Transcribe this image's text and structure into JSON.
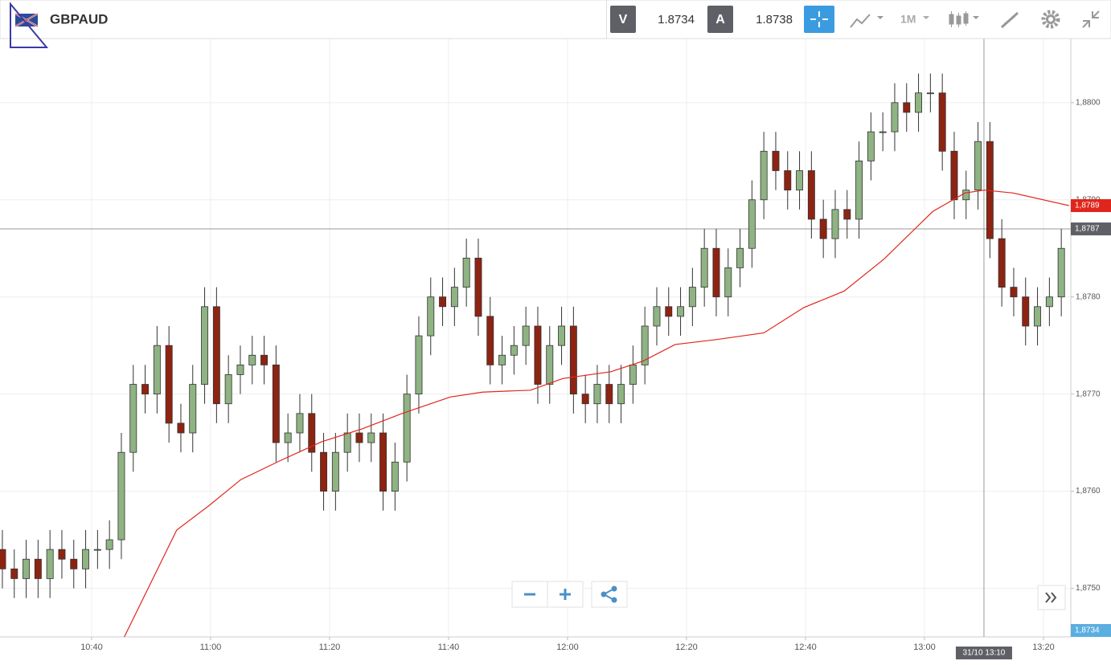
{
  "header": {
    "symbol": "GBPAUD",
    "bid_tag": "V",
    "bid": "1.8734",
    "ask_tag": "A",
    "ask": "1.8738",
    "timeframe": "1M"
  },
  "chart_data": {
    "type": "candlestick",
    "up_color": "#8fb383",
    "down_color": "#8e2312",
    "x": [
      625,
      627,
      629,
      631,
      633,
      635,
      637,
      639,
      641,
      643,
      645,
      647,
      649,
      651,
      653,
      655,
      657,
      659,
      661,
      663,
      665,
      667,
      669,
      671,
      673,
      675,
      677,
      679,
      681,
      683,
      685,
      687,
      689,
      691,
      693,
      695,
      697,
      699,
      701,
      703,
      705,
      707,
      709,
      711,
      713,
      715,
      717,
      719,
      721,
      723,
      725,
      727,
      729,
      731,
      733,
      735,
      737,
      739,
      741,
      743,
      745,
      747,
      749,
      751,
      753,
      755,
      757,
      759,
      761,
      763,
      765,
      767,
      769,
      771,
      773,
      775,
      777,
      779,
      781,
      783,
      785,
      787,
      789,
      791,
      793,
      795,
      797,
      799,
      801,
      803
    ],
    "open": [
      1.8754,
      1.8752,
      1.8751,
      1.8753,
      1.8751,
      1.8754,
      1.8753,
      1.8752,
      1.8754,
      1.8754,
      1.8755,
      1.8764,
      1.8771,
      1.877,
      1.8775,
      1.8767,
      1.8766,
      1.8771,
      1.8779,
      1.8769,
      1.8772,
      1.8773,
      1.8774,
      1.8773,
      1.8765,
      1.8766,
      1.8768,
      1.8764,
      1.876,
      1.8764,
      1.8766,
      1.8765,
      1.8766,
      1.876,
      1.8763,
      1.877,
      1.8776,
      1.878,
      1.8779,
      1.8781,
      1.8784,
      1.8778,
      1.8773,
      1.8774,
      1.8775,
      1.8777,
      1.8771,
      1.8775,
      1.8777,
      1.877,
      1.8769,
      1.8771,
      1.8769,
      1.8771,
      1.8773,
      1.8777,
      1.8779,
      1.8778,
      1.8779,
      1.8781,
      1.8785,
      1.878,
      1.8783,
      1.8785,
      1.879,
      1.8795,
      1.8793,
      1.8791,
      1.8793,
      1.8788,
      1.8786,
      1.8789,
      1.8788,
      1.8794,
      1.8797,
      1.8797,
      1.88,
      1.8799,
      1.8801,
      1.8801,
      1.8795,
      1.879,
      1.8791,
      1.8796,
      1.8786,
      1.8781,
      1.878,
      1.8777,
      1.8779,
      1.878
    ],
    "high": [
      1.8756,
      1.8754,
      1.8755,
      1.8755,
      1.8756,
      1.8756,
      1.8755,
      1.8756,
      1.8756,
      1.8757,
      1.8766,
      1.8773,
      1.8773,
      1.8777,
      1.8777,
      1.8769,
      1.8773,
      1.8781,
      1.8781,
      1.8774,
      1.8775,
      1.8776,
      1.8776,
      1.8775,
      1.8768,
      1.877,
      1.877,
      1.8766,
      1.8766,
      1.8768,
      1.8768,
      1.8768,
      1.8768,
      1.8765,
      1.8772,
      1.8778,
      1.8782,
      1.8782,
      1.8783,
      1.8786,
      1.8786,
      1.878,
      1.8776,
      1.8777,
      1.8779,
      1.8779,
      1.8777,
      1.8779,
      1.8779,
      1.8772,
      1.8773,
      1.8773,
      1.8773,
      1.8775,
      1.8779,
      1.8781,
      1.8781,
      1.8781,
      1.8783,
      1.8787,
      1.8787,
      1.8785,
      1.8787,
      1.8792,
      1.8797,
      1.8797,
      1.8795,
      1.8795,
      1.8795,
      1.879,
      1.8791,
      1.8791,
      1.8796,
      1.8799,
      1.8799,
      1.8802,
      1.8802,
      1.8803,
      1.8803,
      1.8803,
      1.8797,
      1.8793,
      1.8798,
      1.8798,
      1.8788,
      1.8783,
      1.8782,
      1.8781,
      1.8782,
      1.8787
    ],
    "low": [
      1.875,
      1.8749,
      1.8749,
      1.8749,
      1.8749,
      1.8751,
      1.875,
      1.875,
      1.8752,
      1.8752,
      1.8753,
      1.8762,
      1.8768,
      1.8768,
      1.8765,
      1.8764,
      1.8764,
      1.8769,
      1.8767,
      1.8767,
      1.877,
      1.8771,
      1.8771,
      1.8763,
      1.8763,
      1.8764,
      1.8762,
      1.8758,
      1.8758,
      1.8762,
      1.8763,
      1.8763,
      1.8758,
      1.8758,
      1.8761,
      1.8768,
      1.8774,
      1.8777,
      1.8777,
      1.8779,
      1.8776,
      1.8771,
      1.8771,
      1.8772,
      1.8773,
      1.8769,
      1.8769,
      1.8773,
      1.8768,
      1.8767,
      1.8767,
      1.8767,
      1.8767,
      1.8769,
      1.8771,
      1.8775,
      1.8776,
      1.8776,
      1.8777,
      1.8779,
      1.8778,
      1.8778,
      1.8781,
      1.8783,
      1.8788,
      1.8791,
      1.8789,
      1.8789,
      1.8786,
      1.8784,
      1.8784,
      1.8786,
      1.8786,
      1.8792,
      1.8795,
      1.8795,
      1.8797,
      1.8797,
      1.8799,
      1.8793,
      1.8788,
      1.8788,
      1.8789,
      1.8784,
      1.8779,
      1.8778,
      1.8775,
      1.8775,
      1.8777,
      1.8778
    ],
    "close": [
      1.8752,
      1.8751,
      1.8753,
      1.8751,
      1.8754,
      1.8753,
      1.8752,
      1.8754,
      1.8754,
      1.8755,
      1.8764,
      1.8771,
      1.877,
      1.8775,
      1.8767,
      1.8766,
      1.8771,
      1.8779,
      1.8769,
      1.8772,
      1.8773,
      1.8774,
      1.8773,
      1.8765,
      1.8766,
      1.8768,
      1.8764,
      1.876,
      1.8764,
      1.8766,
      1.8765,
      1.8766,
      1.876,
      1.8763,
      1.877,
      1.8776,
      1.878,
      1.8779,
      1.8781,
      1.8784,
      1.8778,
      1.8773,
      1.8774,
      1.8775,
      1.8777,
      1.8771,
      1.8775,
      1.8777,
      1.877,
      1.8769,
      1.8771,
      1.8769,
      1.8771,
      1.8773,
      1.8777,
      1.8779,
      1.8778,
      1.8779,
      1.8781,
      1.8785,
      1.878,
      1.8783,
      1.8785,
      1.879,
      1.8795,
      1.8793,
      1.8791,
      1.8793,
      1.8788,
      1.8786,
      1.8789,
      1.8788,
      1.8794,
      1.8797,
      1.8797,
      1.88,
      1.8799,
      1.8801,
      1.8801,
      1.8795,
      1.879,
      1.8791,
      1.8796,
      1.8786,
      1.8781,
      1.878,
      1.8777,
      1.8779,
      1.878,
      1.8785
    ],
    "moving_average": {
      "color": "#e0261c",
      "x": [
        645.5,
        654.3,
        659.7,
        665.1,
        671.9,
        678.7,
        685.4,
        692.2,
        700.3,
        705.7,
        713.8,
        719.2,
        727.3,
        732.7,
        738.1,
        744.9,
        753.0,
        759.7,
        766.5,
        773.2,
        781.4,
        786.8,
        790.1,
        794.9,
        804.3
      ],
      "values": [
        1.8745,
        1.8756,
        1.87585,
        1.87612,
        1.87632,
        1.87651,
        1.87664,
        1.8768,
        1.87697,
        1.87702,
        1.87704,
        1.87716,
        1.87723,
        1.87734,
        1.87751,
        1.87756,
        1.87763,
        1.87789,
        1.87806,
        1.87839,
        1.87888,
        1.87907,
        1.8791,
        1.87907,
        1.87894
      ],
      "label": "1,8789"
    },
    "bid_label": "1,8734",
    "crosshair": {
      "x": 790,
      "y": 1.8787,
      "x_label": "31/10 13:10",
      "y_label": "1,8787"
    },
    "xlim": [
      624.6,
      804.6
    ],
    "ylim": [
      1.8745,
      1.88066
    ],
    "grid": true,
    "xticks": [
      {
        "value": 640,
        "label": "10:40"
      },
      {
        "value": 660,
        "label": "11:00"
      },
      {
        "value": 680,
        "label": "11:20"
      },
      {
        "value": 700,
        "label": "11:40"
      },
      {
        "value": 720,
        "label": "12:00"
      },
      {
        "value": 740,
        "label": "12:20"
      },
      {
        "value": 760,
        "label": "12:40"
      },
      {
        "value": 780,
        "label": "13:00"
      },
      {
        "value": 800,
        "label": "13:20"
      }
    ],
    "yticks": [
      {
        "value": 1.875,
        "label": "1,8750"
      },
      {
        "value": 1.876,
        "label": "1,8760"
      },
      {
        "value": 1.877,
        "label": "1,8770"
      },
      {
        "value": 1.878,
        "label": "1,8780"
      },
      {
        "value": 1.879,
        "label": "1,8790"
      },
      {
        "value": 1.88,
        "label": "1,8800"
      }
    ]
  }
}
